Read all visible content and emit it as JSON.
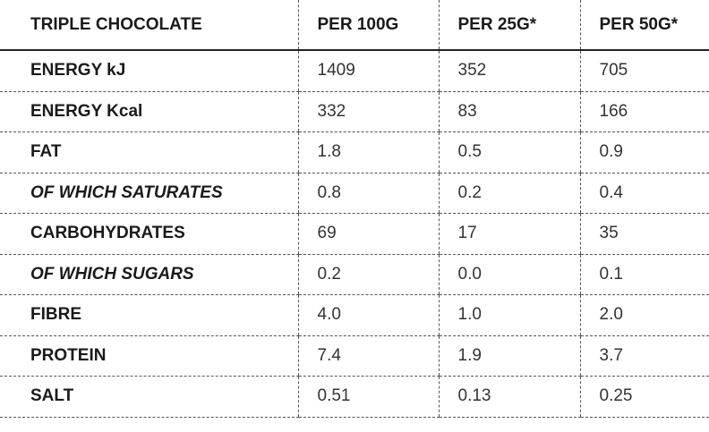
{
  "table": {
    "header": [
      "TRIPLE CHOCOLATE",
      "PER 100G",
      "PER 25G*",
      "PER 50G*"
    ],
    "rows": [
      [
        "ENERGY kJ",
        "1409",
        "352",
        "705"
      ],
      [
        "ENERGY Kcal",
        "332",
        "83",
        "166"
      ],
      [
        "FAT",
        "1.8",
        "0.5",
        "0.9"
      ],
      [
        "OF WHICH SATURATES",
        "0.8",
        "0.2",
        "0.4"
      ],
      [
        "CARBOHYDRATES",
        "69",
        "17",
        "35"
      ],
      [
        "OF WHICH SUGARS",
        "0.2",
        "0.0",
        "0.1"
      ],
      [
        "FIBRE",
        "4.0",
        "1.0",
        "2.0"
      ],
      [
        "PROTEIN",
        "7.4",
        "1.9",
        "3.7"
      ],
      [
        "SALT",
        "0.51",
        "0.13",
        "0.25"
      ]
    ]
  }
}
